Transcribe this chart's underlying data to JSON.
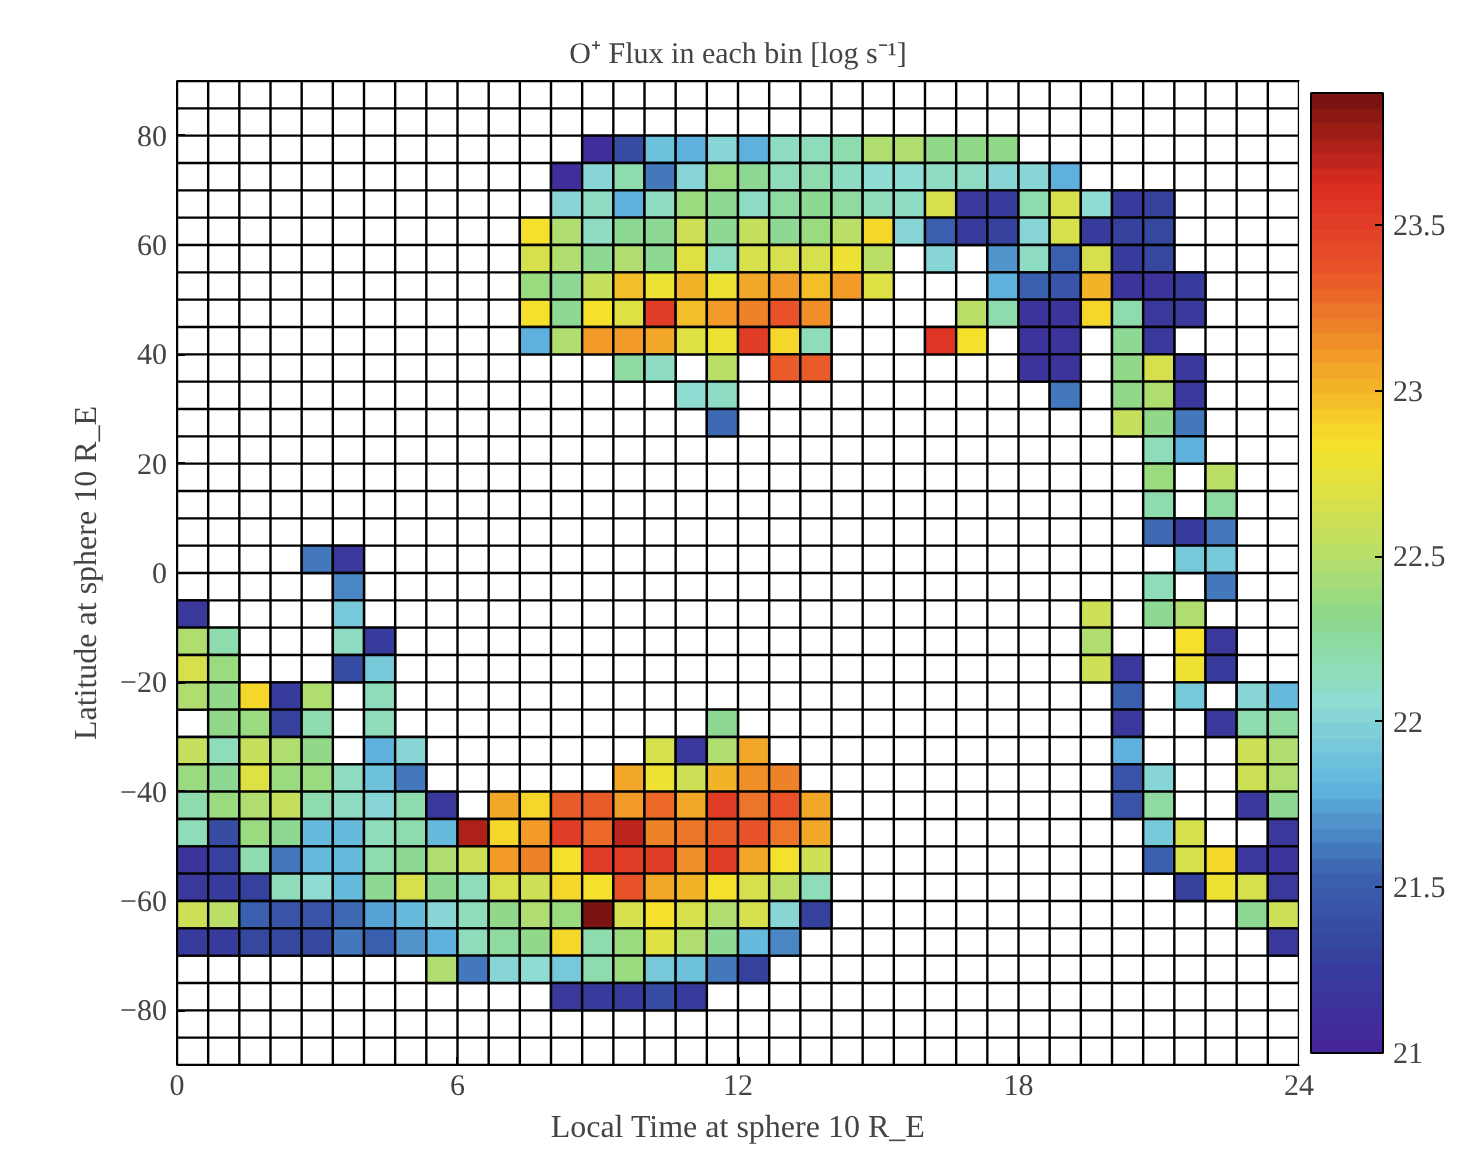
{
  "chart_data": {
    "type": "heatmap",
    "title": "O⁺ Flux in each bin [log s⁻¹]",
    "xlabel": "Local Time at sphere 10 R_E",
    "ylabel": "Latitude at sphere 10 R_E",
    "xlim": [
      0,
      24
    ],
    "ylim": [
      -90,
      90
    ],
    "xticks": [
      0,
      6,
      12,
      18,
      24
    ],
    "yticks": [
      -80,
      -60,
      -40,
      -20,
      0,
      20,
      40,
      60,
      80
    ],
    "clim": [
      21,
      23.9
    ],
    "cticks": [
      21,
      21.5,
      22,
      22.5,
      23,
      23.5
    ],
    "grid": true,
    "y": [
      77.5,
      72.5,
      67.5,
      62.5,
      57.5,
      52.5,
      47.5,
      42.5,
      37.5,
      32.5,
      27.5,
      22.5,
      17.5,
      12.5,
      7.5,
      2.5,
      -2.5,
      -7.5,
      -12.5,
      -17.5,
      -22.5,
      -27.5,
      -32.5,
      -37.5,
      -42.5,
      -47.5,
      -52.5,
      -57.5,
      -62.5,
      -67.5,
      -72.5,
      -77.5
    ],
    "cells": [
      [
        null,
        null,
        null,
        null,
        null,
        null,
        null,
        null,
        null,
        null,
        null,
        null,
        null,
        21.1,
        21.4,
        21.9,
        21.8,
        22.0,
        21.8,
        22.1,
        22.15,
        22.2,
        22.45,
        22.45,
        22.35,
        22.35,
        22.35,
        null,
        null,
        null,
        null,
        null,
        null,
        null,
        null,
        null
      ],
      [
        null,
        null,
        null,
        null,
        null,
        null,
        null,
        null,
        null,
        null,
        null,
        null,
        21.1,
        22.0,
        22.2,
        21.6,
        22.0,
        22.4,
        22.3,
        22.15,
        22.2,
        22.1,
        22.05,
        22.05,
        22.1,
        22.1,
        22.0,
        22.0,
        21.8,
        null,
        null,
        null,
        null,
        null,
        null,
        null
      ],
      [
        null,
        null,
        null,
        null,
        null,
        null,
        null,
        null,
        null,
        null,
        null,
        null,
        22.0,
        22.1,
        21.8,
        22.1,
        22.4,
        22.3,
        22.1,
        22.25,
        22.3,
        22.25,
        22.15,
        22.1,
        22.65,
        21.2,
        21.25,
        22.2,
        22.65,
        22.05,
        21.25,
        21.3,
        null,
        null,
        null,
        null
      ],
      [
        null,
        null,
        null,
        null,
        null,
        null,
        null,
        null,
        null,
        null,
        null,
        22.85,
        22.45,
        22.1,
        22.3,
        22.3,
        22.6,
        22.3,
        22.55,
        22.3,
        22.4,
        22.5,
        22.9,
        22.0,
        21.5,
        21.25,
        21.3,
        22.0,
        22.65,
        21.25,
        21.3,
        21.35,
        null,
        null,
        null,
        null
      ],
      [
        null,
        null,
        null,
        null,
        null,
        null,
        null,
        null,
        null,
        null,
        null,
        22.65,
        22.45,
        22.3,
        22.45,
        22.3,
        22.7,
        22.1,
        22.65,
        22.65,
        22.65,
        22.8,
        22.5,
        null,
        22.0,
        null,
        21.7,
        22.1,
        21.5,
        22.65,
        21.25,
        21.35,
        null,
        null,
        null,
        null
      ],
      [
        null,
        null,
        null,
        null,
        null,
        null,
        null,
        null,
        null,
        null,
        null,
        22.4,
        22.3,
        22.55,
        22.95,
        22.8,
        23.0,
        22.8,
        23.05,
        23.1,
        22.95,
        23.1,
        22.7,
        null,
        null,
        null,
        21.8,
        21.5,
        21.45,
        23.0,
        21.15,
        21.15,
        21.25,
        null,
        null,
        null
      ],
      [
        null,
        null,
        null,
        null,
        null,
        null,
        null,
        null,
        null,
        null,
        null,
        22.85,
        22.3,
        22.85,
        22.7,
        23.5,
        22.95,
        23.1,
        23.2,
        23.4,
        23.15,
        null,
        null,
        null,
        null,
        22.5,
        22.2,
        21.15,
        21.15,
        22.9,
        22.2,
        21.2,
        21.2,
        null,
        null,
        null
      ],
      [
        null,
        null,
        null,
        null,
        null,
        null,
        null,
        null,
        null,
        null,
        null,
        21.8,
        22.45,
        23.1,
        23.1,
        23.05,
        22.7,
        22.8,
        23.5,
        22.9,
        22.15,
        null,
        null,
        null,
        23.55,
        22.85,
        null,
        21.15,
        21.15,
        null,
        22.3,
        21.2,
        null,
        null,
        null,
        null
      ],
      [
        null,
        null,
        null,
        null,
        null,
        null,
        null,
        null,
        null,
        null,
        null,
        null,
        null,
        null,
        22.25,
        22.1,
        null,
        22.5,
        null,
        23.35,
        23.35,
        null,
        null,
        null,
        null,
        null,
        null,
        21.15,
        21.15,
        null,
        22.35,
        22.65,
        21.2,
        null,
        null,
        null
      ],
      [
        null,
        null,
        null,
        null,
        null,
        null,
        null,
        null,
        null,
        null,
        null,
        null,
        null,
        null,
        null,
        null,
        22.05,
        22.1,
        null,
        null,
        null,
        null,
        null,
        null,
        null,
        null,
        null,
        null,
        21.6,
        null,
        22.35,
        22.45,
        21.2,
        null,
        null,
        null
      ],
      [
        null,
        null,
        null,
        null,
        null,
        null,
        null,
        null,
        null,
        null,
        null,
        null,
        null,
        null,
        null,
        null,
        null,
        21.55,
        null,
        null,
        null,
        null,
        null,
        null,
        null,
        null,
        null,
        null,
        null,
        null,
        22.55,
        22.35,
        21.6,
        null,
        null,
        null
      ],
      [
        null,
        null,
        null,
        null,
        null,
        null,
        null,
        null,
        null,
        null,
        null,
        null,
        null,
        null,
        null,
        null,
        null,
        null,
        null,
        null,
        null,
        null,
        null,
        null,
        null,
        null,
        null,
        null,
        null,
        null,
        null,
        22.15,
        21.8,
        null,
        null,
        null
      ],
      [
        null,
        null,
        null,
        null,
        null,
        null,
        null,
        null,
        null,
        null,
        null,
        null,
        null,
        null,
        null,
        null,
        null,
        null,
        null,
        null,
        null,
        null,
        null,
        null,
        null,
        null,
        null,
        null,
        null,
        null,
        null,
        22.4,
        null,
        22.5,
        null,
        null
      ],
      [
        null,
        null,
        null,
        null,
        null,
        null,
        null,
        null,
        null,
        null,
        null,
        null,
        null,
        null,
        null,
        null,
        null,
        null,
        null,
        null,
        null,
        null,
        null,
        null,
        null,
        null,
        null,
        null,
        null,
        null,
        null,
        22.2,
        null,
        22.25,
        null,
        null
      ],
      [
        null,
        null,
        null,
        null,
        null,
        null,
        null,
        null,
        null,
        null,
        null,
        null,
        null,
        null,
        null,
        null,
        null,
        null,
        null,
        null,
        null,
        null,
        null,
        null,
        null,
        null,
        null,
        null,
        null,
        null,
        null,
        21.55,
        21.25,
        21.6,
        null,
        null
      ],
      [
        null,
        null,
        null,
        null,
        21.6,
        21.2,
        null,
        null,
        null,
        null,
        null,
        null,
        null,
        null,
        null,
        null,
        null,
        null,
        null,
        null,
        null,
        null,
        null,
        null,
        null,
        null,
        null,
        null,
        null,
        null,
        null,
        null,
        21.95,
        21.95,
        null,
        null
      ],
      [
        null,
        null,
        null,
        null,
        null,
        21.65,
        null,
        null,
        null,
        null,
        null,
        null,
        null,
        null,
        null,
        null,
        null,
        null,
        null,
        null,
        null,
        null,
        null,
        null,
        null,
        null,
        null,
        null,
        null,
        null,
        null,
        22.15,
        null,
        21.6,
        null,
        null
      ],
      [
        21.2,
        null,
        null,
        null,
        null,
        21.95,
        null,
        null,
        null,
        null,
        null,
        null,
        null,
        null,
        null,
        null,
        null,
        null,
        null,
        null,
        null,
        null,
        null,
        null,
        null,
        null,
        null,
        null,
        null,
        22.6,
        null,
        22.3,
        22.45,
        null,
        null,
        null
      ],
      [
        22.45,
        22.2,
        null,
        null,
        null,
        22.1,
        21.25,
        null,
        null,
        null,
        null,
        null,
        null,
        null,
        null,
        null,
        null,
        null,
        null,
        null,
        null,
        null,
        null,
        null,
        null,
        null,
        null,
        null,
        null,
        22.45,
        null,
        null,
        22.85,
        21.2,
        null,
        null
      ],
      [
        22.65,
        22.4,
        null,
        null,
        null,
        21.4,
        21.95,
        null,
        null,
        null,
        null,
        null,
        null,
        null,
        null,
        null,
        null,
        null,
        null,
        null,
        null,
        null,
        null,
        null,
        null,
        null,
        null,
        null,
        null,
        22.6,
        21.2,
        null,
        22.8,
        21.25,
        null,
        null
      ],
      [
        22.45,
        22.35,
        22.9,
        21.25,
        22.45,
        null,
        22.15,
        null,
        null,
        null,
        null,
        null,
        null,
        null,
        null,
        null,
        null,
        null,
        null,
        null,
        null,
        null,
        null,
        null,
        null,
        null,
        null,
        null,
        null,
        null,
        21.5,
        null,
        21.95,
        null,
        22.0,
        21.85
      ],
      [
        null,
        22.35,
        22.4,
        21.3,
        22.2,
        null,
        22.15,
        null,
        null,
        null,
        null,
        null,
        null,
        null,
        null,
        null,
        null,
        22.3,
        null,
        null,
        null,
        null,
        null,
        null,
        null,
        null,
        null,
        null,
        null,
        null,
        21.2,
        null,
        null,
        21.2,
        22.2,
        22.25
      ],
      [
        22.55,
        22.15,
        22.55,
        22.45,
        22.35,
        null,
        21.8,
        22.0,
        null,
        null,
        null,
        null,
        null,
        null,
        null,
        22.65,
        21.2,
        22.45,
        23.05,
        null,
        null,
        null,
        null,
        null,
        null,
        null,
        null,
        null,
        null,
        null,
        21.8,
        null,
        null,
        null,
        22.6,
        22.45
      ],
      [
        22.4,
        22.3,
        22.7,
        22.4,
        22.4,
        22.1,
        21.9,
        21.6,
        null,
        null,
        null,
        null,
        null,
        null,
        23.05,
        22.8,
        22.6,
        23.0,
        23.15,
        23.2,
        null,
        null,
        null,
        null,
        null,
        null,
        null,
        null,
        null,
        null,
        21.45,
        22.0,
        null,
        null,
        22.6,
        22.45
      ],
      [
        22.2,
        22.4,
        22.45,
        22.55,
        22.2,
        22.1,
        22.0,
        22.2,
        21.2,
        null,
        23.05,
        22.9,
        23.35,
        23.35,
        23.1,
        23.3,
        23.05,
        23.5,
        23.25,
        23.4,
        23.05,
        null,
        null,
        null,
        null,
        null,
        null,
        null,
        null,
        null,
        21.45,
        22.25,
        null,
        null,
        21.2,
        22.3
      ],
      [
        22.15,
        21.4,
        22.4,
        22.3,
        21.85,
        21.85,
        22.15,
        22.2,
        21.85,
        23.75,
        22.9,
        23.1,
        23.5,
        23.3,
        23.7,
        23.2,
        23.25,
        23.35,
        23.4,
        23.25,
        23.05,
        null,
        null,
        null,
        null,
        null,
        null,
        null,
        null,
        null,
        null,
        21.95,
        22.65,
        null,
        null,
        21.2
      ],
      [
        21.15,
        21.3,
        22.2,
        21.6,
        21.85,
        21.85,
        22.2,
        22.3,
        22.45,
        22.6,
        23.1,
        23.2,
        22.85,
        23.5,
        23.5,
        23.5,
        23.15,
        23.5,
        23.05,
        22.85,
        22.6,
        null,
        null,
        null,
        null,
        null,
        null,
        null,
        null,
        null,
        null,
        21.5,
        22.65,
        22.9,
        21.2,
        21.15
      ],
      [
        21.2,
        21.25,
        21.3,
        22.15,
        22.05,
        21.85,
        22.3,
        22.65,
        22.3,
        22.15,
        22.65,
        22.6,
        22.9,
        22.85,
        23.4,
        23.05,
        23.0,
        22.85,
        22.65,
        22.5,
        22.15,
        null,
        null,
        null,
        null,
        null,
        null,
        null,
        null,
        null,
        null,
        null,
        21.3,
        22.8,
        22.65,
        21.2
      ],
      [
        22.6,
        22.5,
        21.5,
        21.45,
        21.45,
        21.55,
        21.75,
        21.85,
        22.0,
        22.15,
        22.35,
        22.45,
        22.4,
        23.9,
        22.65,
        22.85,
        22.65,
        22.45,
        22.65,
        22.0,
        21.3,
        null,
        null,
        null,
        null,
        null,
        null,
        null,
        null,
        null,
        null,
        null,
        null,
        null,
        22.3,
        22.6
      ],
      [
        21.25,
        21.25,
        21.35,
        21.35,
        21.35,
        21.6,
        21.5,
        21.7,
        21.8,
        22.15,
        22.25,
        22.35,
        22.9,
        22.2,
        22.4,
        22.7,
        22.45,
        22.3,
        21.85,
        21.65,
        null,
        null,
        null,
        null,
        null,
        null,
        null,
        null,
        null,
        null,
        null,
        null,
        null,
        null,
        null,
        21.2
      ],
      [
        null,
        null,
        null,
        null,
        null,
        null,
        null,
        null,
        22.45,
        21.6,
        22.0,
        22.05,
        21.95,
        22.2,
        22.4,
        21.95,
        21.9,
        21.6,
        21.3,
        null,
        null,
        null,
        null,
        null,
        null,
        null,
        null,
        null,
        null,
        null,
        null,
        null,
        null,
        null,
        null,
        null
      ],
      [
        null,
        null,
        null,
        null,
        null,
        null,
        null,
        null,
        null,
        null,
        null,
        null,
        21.2,
        21.25,
        21.25,
        21.4,
        21.25,
        null,
        null,
        null,
        null,
        null,
        null,
        null,
        null,
        null,
        null,
        null,
        null,
        null,
        null,
        null,
        null,
        null,
        null,
        null
      ]
    ]
  }
}
